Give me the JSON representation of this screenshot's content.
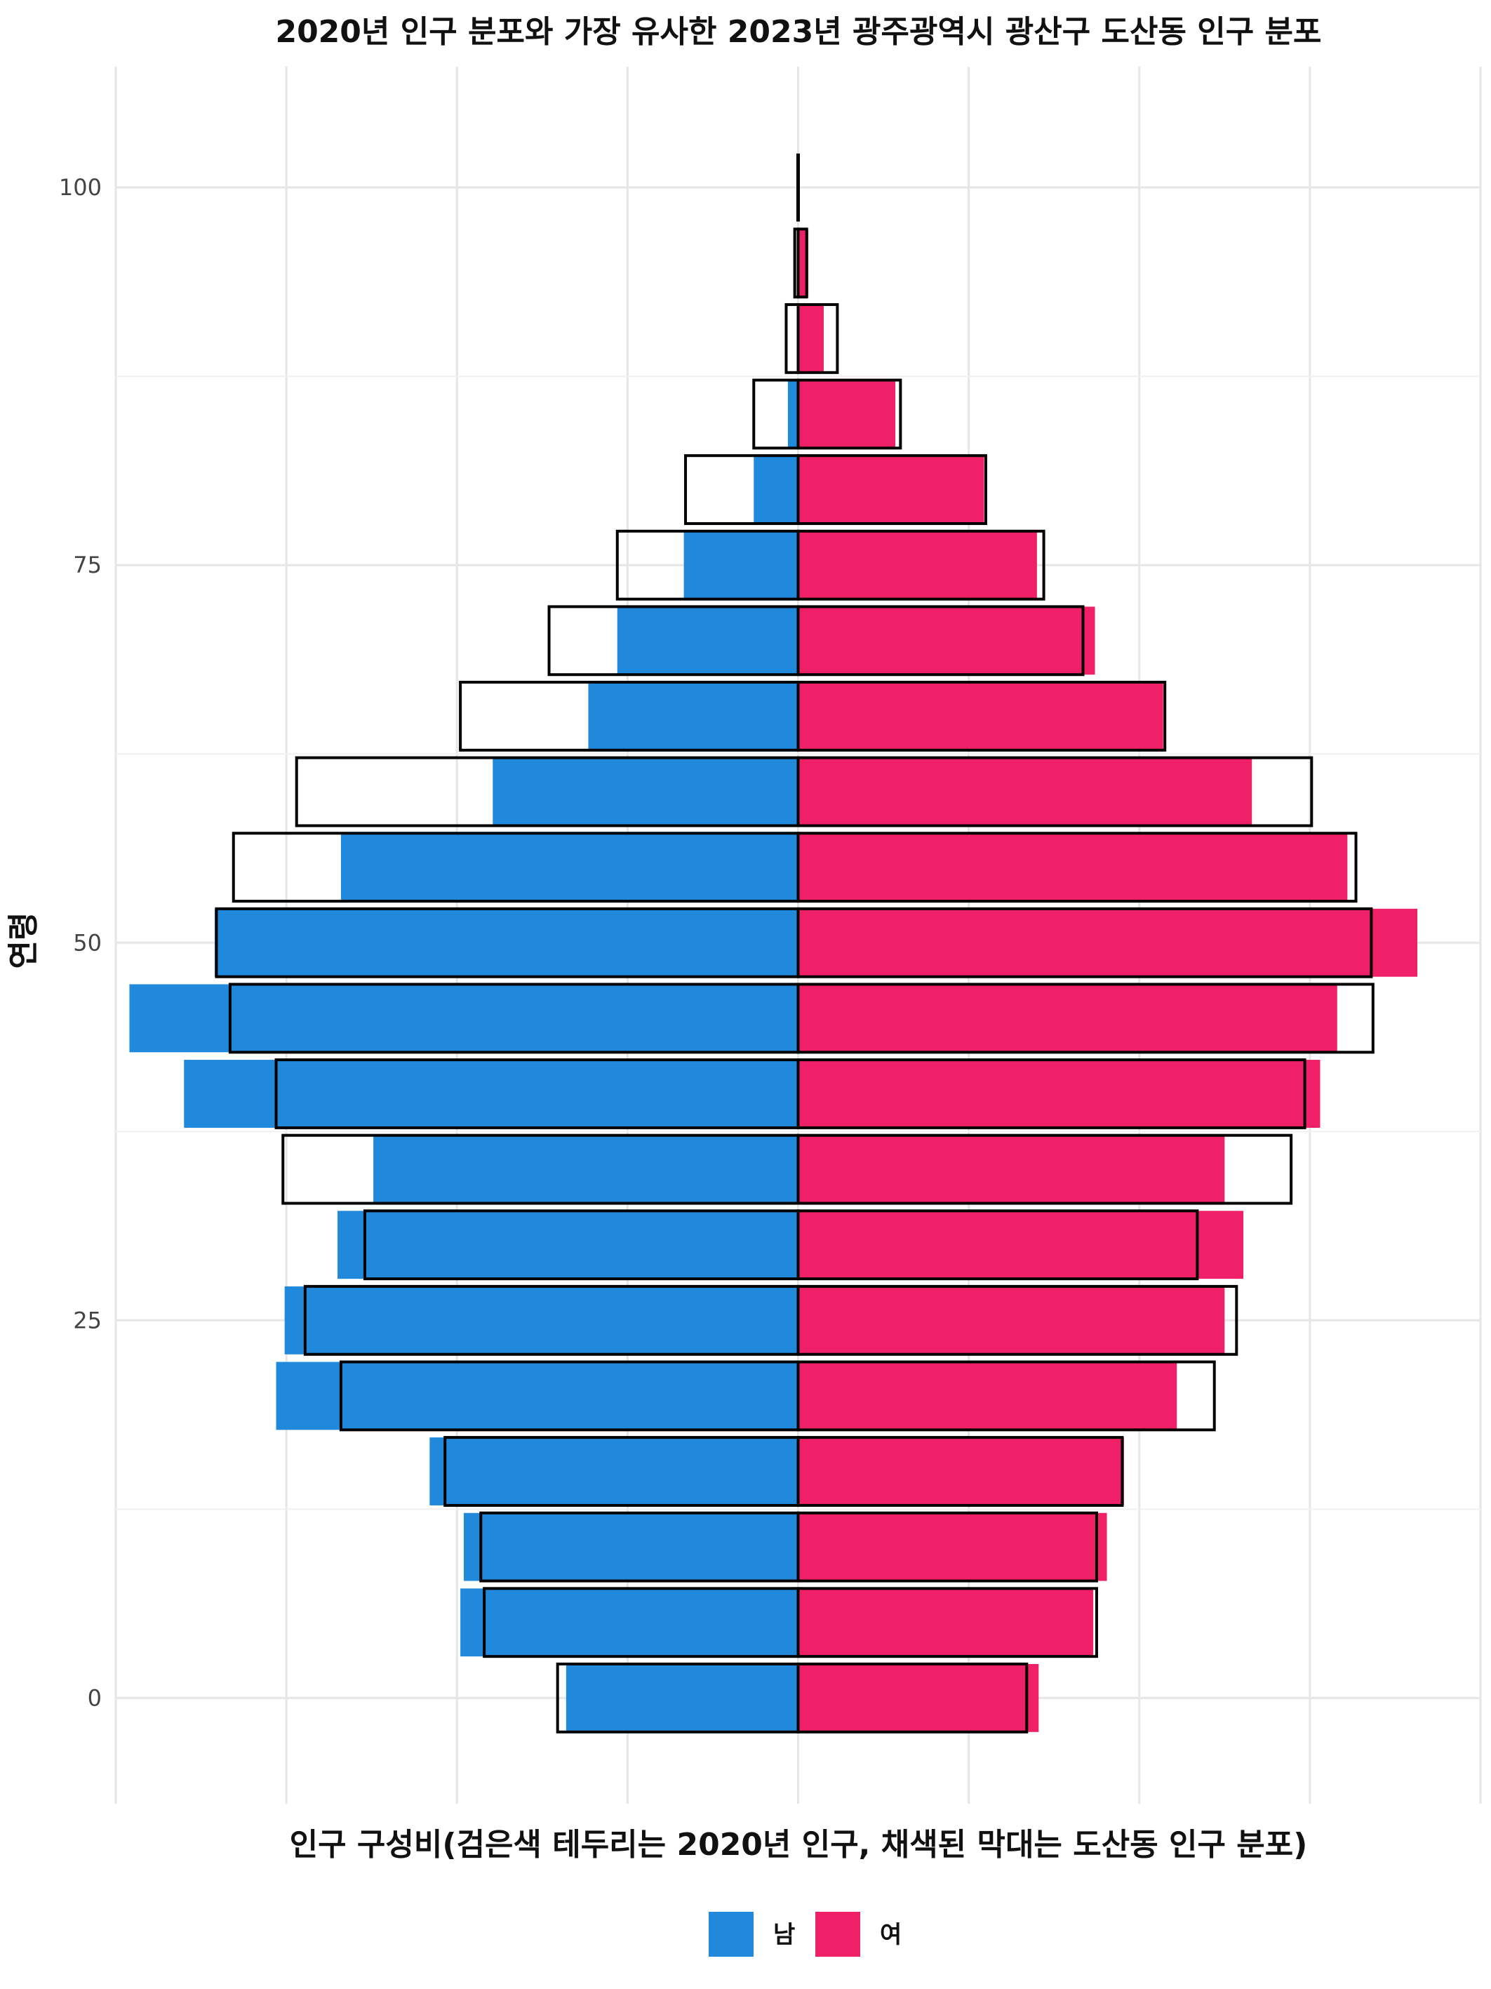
{
  "chart_data": {
    "type": "bar",
    "orientation": "horizontal",
    "subtype": "population-pyramid",
    "title": "2020년 인구 분포와 가장 유사한 2023년 광주광역시 광산구 도산동 인구 분포",
    "xlabel": "인구 구성비(검은색 테두리는 2020년 인구, 채색된 막대는 도산동 인구 분포)",
    "ylabel": "연령",
    "y_ticks": [
      0,
      25,
      50,
      75,
      100
    ],
    "ylim": [
      -7,
      108
    ],
    "xlim": [
      -4.0,
      4.0
    ],
    "x_tick_labels_shown": false,
    "grid": true,
    "legend_position": "bottom",
    "colors": {
      "male": "#2189dc",
      "female": "#ef2068",
      "outline": "#000000"
    },
    "age_groups": [
      0,
      5,
      10,
      15,
      20,
      25,
      30,
      35,
      40,
      45,
      50,
      55,
      60,
      65,
      70,
      75,
      80,
      85,
      90,
      95,
      100
    ],
    "series": [
      {
        "name": "남",
        "role": "dosan-dong-2023",
        "values": [
          -1.36,
          -1.98,
          -1.96,
          -2.16,
          -3.06,
          -3.01,
          -2.7,
          -2.49,
          -3.6,
          -3.92,
          -3.42,
          -2.68,
          -1.79,
          -1.23,
          -1.06,
          -0.67,
          -0.26,
          -0.06,
          0.0,
          0.0,
          0.0
        ]
      },
      {
        "name": "여",
        "role": "dosan-dong-2023",
        "values": [
          1.41,
          1.73,
          1.81,
          1.91,
          2.22,
          2.5,
          2.61,
          2.5,
          3.06,
          3.16,
          3.63,
          3.22,
          2.66,
          2.14,
          1.74,
          1.4,
          1.09,
          0.57,
          0.15,
          0.06,
          0.0
        ]
      },
      {
        "name": "남-2020",
        "role": "outline-2020",
        "values": [
          -1.41,
          -1.84,
          -1.86,
          -2.07,
          -2.68,
          -2.89,
          -2.54,
          -3.02,
          -3.06,
          -3.33,
          -3.41,
          -3.31,
          -2.94,
          -1.98,
          -1.46,
          -1.06,
          -0.66,
          -0.26,
          -0.07,
          -0.02,
          0.0
        ]
      },
      {
        "name": "여-2020",
        "role": "outline-2020",
        "values": [
          1.34,
          1.75,
          1.75,
          1.9,
          2.44,
          2.57,
          2.34,
          2.89,
          2.97,
          3.37,
          3.36,
          3.27,
          3.01,
          2.15,
          1.67,
          1.44,
          1.1,
          0.6,
          0.23,
          0.05,
          0.0
        ]
      }
    ],
    "legend": [
      {
        "name": "남",
        "color": "#2189dc"
      },
      {
        "name": "여",
        "color": "#ef2068"
      }
    ]
  }
}
